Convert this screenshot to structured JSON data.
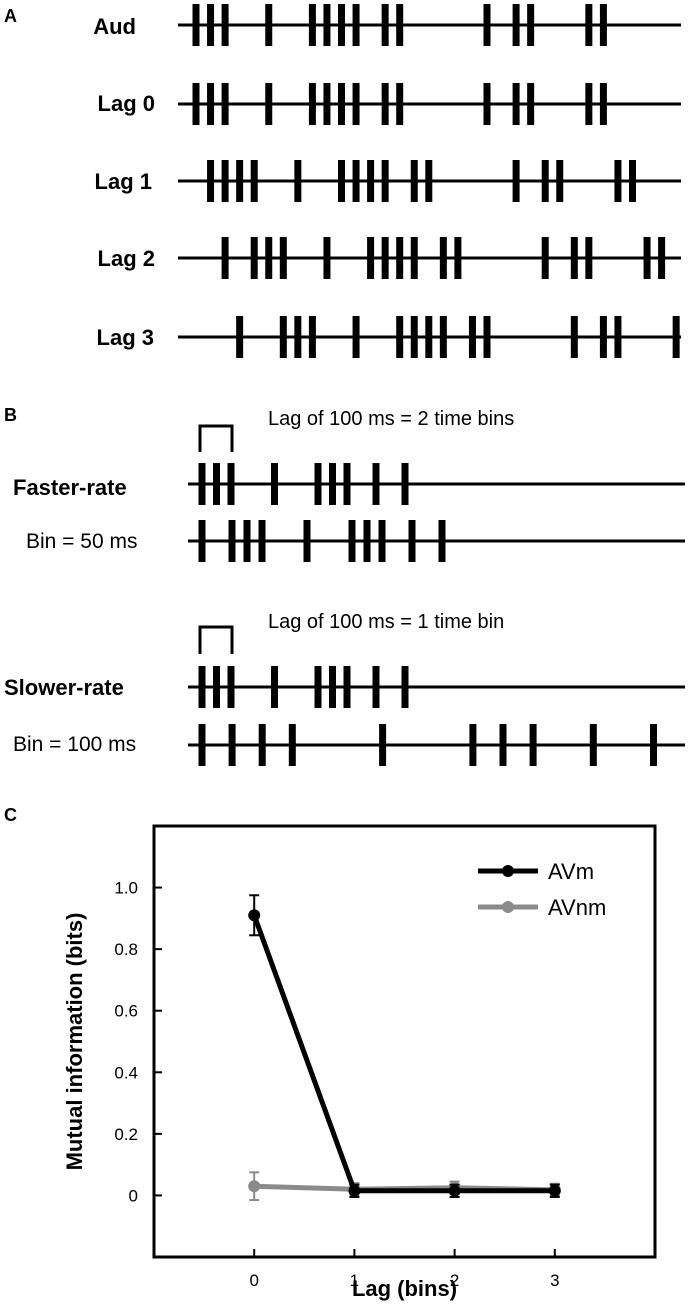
{
  "panels": {
    "a": {
      "label": "A",
      "rows": [
        {
          "label": "Aud",
          "events": [
            0,
            1,
            2,
            5,
            8,
            9,
            10,
            11,
            13,
            14,
            20,
            22,
            23,
            27,
            28
          ]
        },
        {
          "label": "Lag 0",
          "events": [
            0,
            1,
            2,
            5,
            8,
            9,
            10,
            11,
            13,
            14,
            20,
            22,
            23,
            27,
            28
          ]
        },
        {
          "label": "Lag 1",
          "events": [
            1,
            2,
            3,
            4,
            7,
            10,
            11,
            12,
            13,
            15,
            16,
            22,
            24,
            25,
            29,
            30
          ]
        },
        {
          "label": "Lag 2",
          "events": [
            2,
            4,
            5,
            6,
            9,
            12,
            13,
            14,
            15,
            17,
            18,
            24,
            26,
            27,
            31,
            32
          ]
        },
        {
          "label": "Lag 3",
          "events": [
            3,
            6,
            7,
            8,
            11,
            14,
            15,
            16,
            17,
            19,
            20,
            26,
            28,
            29,
            33
          ]
        }
      ]
    },
    "b": {
      "label": "B",
      "faster": {
        "caption": "Lag of 100 ms = 2 time bins",
        "row_label": "Faster-rate",
        "row2_label": "Bin = 50 ms",
        "events": [
          0,
          1,
          2,
          5,
          8,
          9,
          10,
          12,
          14
        ],
        "events2": [
          0,
          2,
          3,
          4,
          7,
          10,
          11,
          12,
          14,
          16
        ]
      },
      "slower": {
        "caption": "Lag of 100 ms = 1 time bin",
        "row_label": "Slower-rate",
        "row2_label": "Bin = 100 ms",
        "events": [
          0,
          1,
          2,
          5,
          8,
          9,
          10,
          12,
          14
        ],
        "events2": [
          0,
          1,
          2,
          3,
          6,
          9,
          10,
          11,
          13,
          15
        ]
      }
    },
    "c": {
      "label": "C"
    }
  },
  "chart_data": {
    "type": "line",
    "x": [
      0,
      1,
      2,
      3
    ],
    "xticks": [
      "0",
      "1",
      "2",
      "3"
    ],
    "yticks": [
      "0",
      "0.2",
      "0.4",
      "0.6",
      "0.8",
      "1.0"
    ],
    "xlim": [
      -1,
      4
    ],
    "ylim": [
      -0.2,
      1.2
    ],
    "xlabel": "Lag (bins)",
    "ylabel": "Mutual information (bits)",
    "legend_position": "top-right",
    "series": [
      {
        "name": "AVm",
        "values": [
          0.91,
          0.015,
          0.015,
          0.015
        ],
        "err": [
          0.065,
          0.02,
          0.02,
          0.02
        ],
        "color": "#000000"
      },
      {
        "name": "AVnm",
        "values": [
          0.03,
          0.02,
          0.025,
          0.018
        ],
        "err": [
          0.045,
          0.02,
          0.02,
          0.02
        ],
        "color": "#8a8a8a"
      }
    ]
  }
}
